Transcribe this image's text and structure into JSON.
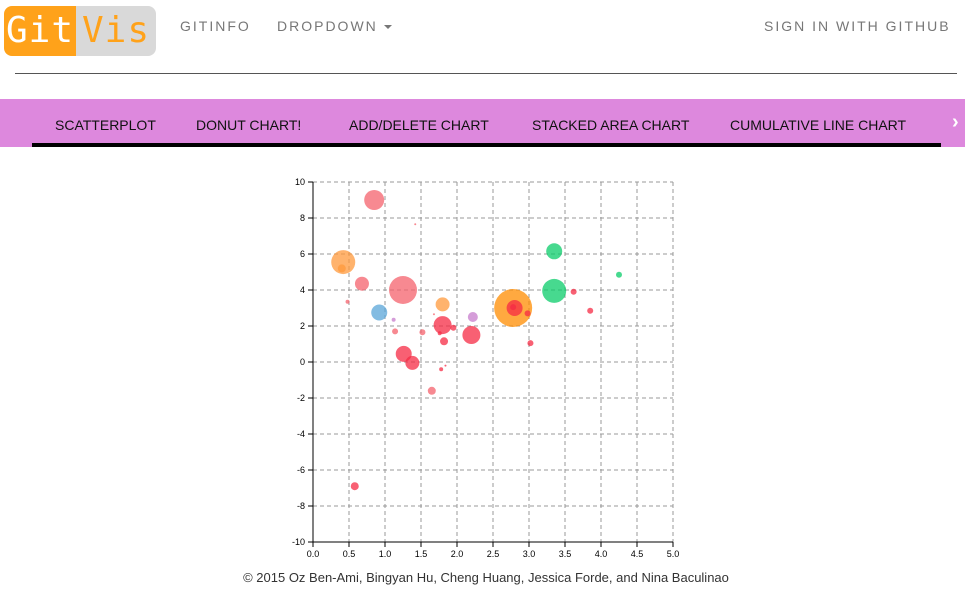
{
  "header": {
    "logo": {
      "left": "Git",
      "right": "Vis"
    },
    "nav": {
      "gitinfo": "GITINFO",
      "dropdown": "DROPDOWN"
    },
    "signin": "SIGN IN WITH GITHUB"
  },
  "tabs": [
    "SCATTERPLOT",
    "DONUT CHART!",
    "ADD/DELETE CHART",
    "STACKED AREA CHART",
    "CUMULATIVE LINE CHART"
  ],
  "tab_scroll_glyph": "›",
  "chart_data": {
    "type": "scatter",
    "title": "",
    "xlabel": "",
    "ylabel": "",
    "xlim": [
      0,
      5
    ],
    "ylim": [
      -10,
      10
    ],
    "xticks": [
      "0.0",
      "0.5",
      "1.0",
      "1.5",
      "2.0",
      "2.5",
      "3.0",
      "3.5",
      "4.0",
      "4.5",
      "5.0"
    ],
    "yticks": [
      "10",
      "8",
      "6",
      "4",
      "2",
      "0",
      "-2",
      "-4",
      "-6",
      "-8",
      "-10"
    ],
    "grid": true,
    "points": [
      {
        "x": 0.85,
        "y": 9.0,
        "r": 10,
        "color": "#f4616c"
      },
      {
        "x": 1.42,
        "y": 7.65,
        "r": 1,
        "color": "#f4616c"
      },
      {
        "x": 0.42,
        "y": 5.55,
        "r": 12,
        "color": "#ff9a3c"
      },
      {
        "x": 0.4,
        "y": 5.2,
        "r": 4,
        "color": "#ff9a3c"
      },
      {
        "x": 0.68,
        "y": 4.35,
        "r": 7,
        "color": "#f4616c"
      },
      {
        "x": 1.25,
        "y": 4.0,
        "r": 14,
        "color": "#f4616c"
      },
      {
        "x": 0.48,
        "y": 3.35,
        "r": 2,
        "color": "#f4616c"
      },
      {
        "x": 0.92,
        "y": 2.75,
        "r": 8,
        "color": "#5aa6d8"
      },
      {
        "x": 1.12,
        "y": 2.35,
        "r": 2,
        "color": "#c77ccc"
      },
      {
        "x": 1.14,
        "y": 1.7,
        "r": 3,
        "color": "#f4616c"
      },
      {
        "x": 1.52,
        "y": 1.65,
        "r": 3,
        "color": "#f4616c"
      },
      {
        "x": 1.8,
        "y": 3.2,
        "r": 7,
        "color": "#ff9a3c"
      },
      {
        "x": 1.8,
        "y": 2.05,
        "r": 9,
        "color": "#f52b44"
      },
      {
        "x": 1.95,
        "y": 1.9,
        "r": 3,
        "color": "#f52b44"
      },
      {
        "x": 1.76,
        "y": 1.6,
        "r": 2,
        "color": "#f52b44"
      },
      {
        "x": 1.82,
        "y": 1.15,
        "r": 4,
        "color": "#f52b44"
      },
      {
        "x": 1.68,
        "y": 2.65,
        "r": 1,
        "color": "#f4616c"
      },
      {
        "x": 2.22,
        "y": 2.5,
        "r": 5,
        "color": "#c77ccc"
      },
      {
        "x": 2.2,
        "y": 1.5,
        "r": 9,
        "color": "#f52b44"
      },
      {
        "x": 1.26,
        "y": 0.45,
        "r": 8,
        "color": "#f52b44"
      },
      {
        "x": 1.38,
        "y": -0.05,
        "r": 7,
        "color": "#f52b44"
      },
      {
        "x": 1.78,
        "y": -0.4,
        "r": 2,
        "color": "#f52b44"
      },
      {
        "x": 1.84,
        "y": -0.2,
        "r": 1,
        "color": "#f52b44"
      },
      {
        "x": 1.65,
        "y": -1.6,
        "r": 4,
        "color": "#f4616c"
      },
      {
        "x": 2.78,
        "y": 3.0,
        "r": 19,
        "color": "#ff8c00"
      },
      {
        "x": 2.8,
        "y": 3.0,
        "r": 8,
        "color": "#f52b44"
      },
      {
        "x": 2.78,
        "y": 3.05,
        "r": 3,
        "color": "#f52b44"
      },
      {
        "x": 2.98,
        "y": 2.7,
        "r": 3,
        "color": "#f52b44"
      },
      {
        "x": 3.02,
        "y": 1.05,
        "r": 3,
        "color": "#f52b44"
      },
      {
        "x": 3.35,
        "y": 6.15,
        "r": 8,
        "color": "#0acc6a"
      },
      {
        "x": 3.35,
        "y": 3.95,
        "r": 12,
        "color": "#0acc6a"
      },
      {
        "x": 3.62,
        "y": 3.9,
        "r": 3,
        "color": "#f52b44"
      },
      {
        "x": 3.85,
        "y": 2.85,
        "r": 3,
        "color": "#f52b44"
      },
      {
        "x": 4.25,
        "y": 4.85,
        "r": 3,
        "color": "#0acc6a"
      },
      {
        "x": 0.58,
        "y": -6.9,
        "r": 4,
        "color": "#f52b44"
      }
    ]
  },
  "footer": "© 2015 Oz Ben-Ami, Bingyan Hu, Cheng Huang, Jessica Forde, and Nina Baculinao",
  "colors": {
    "tab_bar": "#dd88dd",
    "logo_orange": "#ffa21a",
    "logo_gray": "#d9d9d9",
    "nav_text": "#777777"
  }
}
